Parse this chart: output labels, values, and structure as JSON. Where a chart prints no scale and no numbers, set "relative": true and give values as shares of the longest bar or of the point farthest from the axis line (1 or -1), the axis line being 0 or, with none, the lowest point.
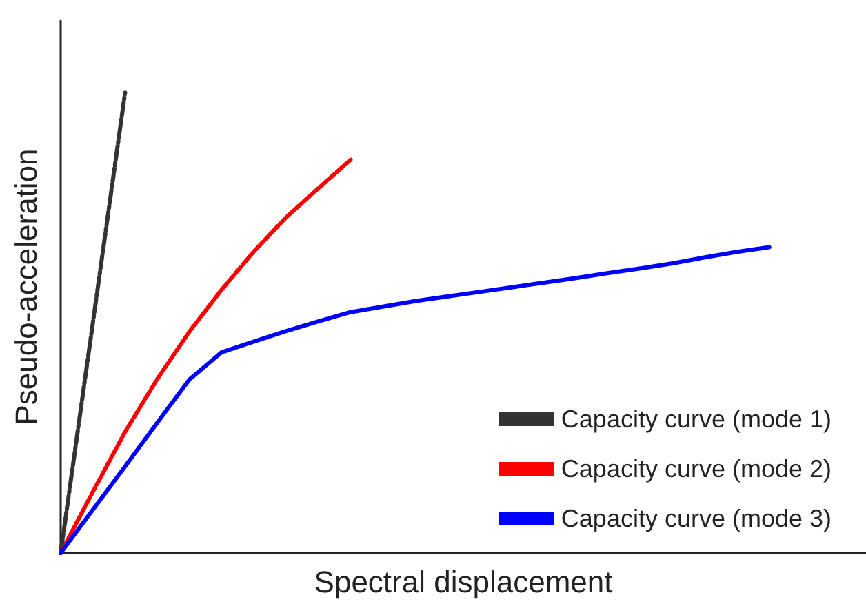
{
  "chart_data": {
    "type": "line",
    "relative": true,
    "xlabel": "Spectral displacement",
    "ylabel": "Pseudo-acceleration",
    "legend": "bottom right",
    "grid": false,
    "marker": "none",
    "tick_labels": false,
    "categories": [
      null,
      null,
      null,
      null,
      null,
      null,
      null,
      null,
      null,
      null,
      null,
      null,
      null,
      null,
      null,
      null,
      null,
      null,
      null,
      null,
      null,
      null,
      null,
      null,
      null,
      null
    ],
    "series": [
      {
        "name": "Capacity curve (mode 1)",
        "color": "#333333",
        "line_style": "dashdot",
        "values": [
          0,
          0.5,
          1,
          null,
          null,
          null,
          null,
          null,
          null,
          null,
          null,
          null,
          null,
          null,
          null,
          null,
          null,
          null,
          null,
          null,
          null,
          null,
          null,
          null,
          null,
          null
        ]
      },
      {
        "name": "Capacity curve (mode 2)",
        "color": "#ff0000",
        "line_style": "dashed",
        "values": [
          0,
          0.133,
          0.263,
          0.378,
          0.481,
          0.572,
          0.655,
          0.729,
          0.792,
          0.854,
          null,
          null,
          null,
          null,
          null,
          null,
          null,
          null,
          null,
          null,
          null,
          null,
          null,
          null,
          null,
          null
        ]
      },
      {
        "name": "Capacity curve (mode 3)",
        "color": "#0000ff",
        "line_style": "solid",
        "values": [
          0,
          0.094,
          0.188,
          0.283,
          0.377,
          0.436,
          0.459,
          0.482,
          0.503,
          0.523,
          0.535,
          0.547,
          0.557,
          0.567,
          0.577,
          0.587,
          0.597,
          0.608,
          0.618,
          0.629,
          0.642,
          0.654,
          0.664,
          null,
          null,
          null
        ]
      }
    ]
  }
}
